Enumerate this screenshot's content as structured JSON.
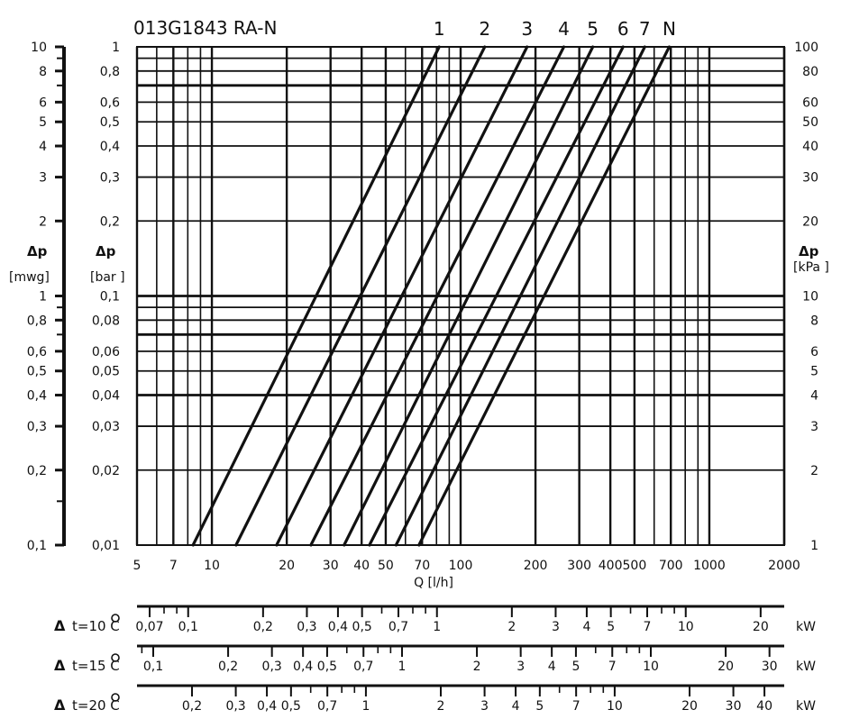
{
  "chart_data": {
    "type": "line",
    "title": "013G1843 RA-N",
    "xlabel": "Q [l/h]",
    "x_scale": "log",
    "y_scale": "log",
    "xlim": [
      5,
      2000
    ],
    "ylim_bar": [
      0.01,
      1
    ],
    "x_tick_values": [
      5,
      7,
      10,
      20,
      30,
      40,
      50,
      70,
      100,
      200,
      300,
      400,
      500,
      700,
      1000,
      2000
    ],
    "x_tick_labels": [
      "5",
      "7",
      "10",
      "20",
      "30",
      "40",
      "50",
      "70",
      "100",
      "200",
      "300",
      "400",
      "500",
      "700",
      "1000",
      "2000"
    ],
    "y_axes": {
      "mwg": {
        "symbol": "Δp",
        "unit": "[mwg]",
        "ticks": [
          {
            "v": 10,
            "label": "10"
          },
          {
            "v": 8,
            "label": "8"
          },
          {
            "v": 6,
            "label": "6"
          },
          {
            "v": 5,
            "label": "5"
          },
          {
            "v": 4,
            "label": "4"
          },
          {
            "v": 3,
            "label": "3"
          },
          {
            "v": 2,
            "label": "2"
          },
          {
            "v": 1,
            "label": "1"
          },
          {
            "v": 0.8,
            "label": "0,8"
          },
          {
            "v": 0.6,
            "label": "0,6"
          },
          {
            "v": 0.5,
            "label": "0,5"
          },
          {
            "v": 0.4,
            "label": "0,4"
          },
          {
            "v": 0.3,
            "label": "0,3"
          },
          {
            "v": 0.2,
            "label": "0,2"
          },
          {
            "v": 0.1,
            "label": "0,1"
          }
        ]
      },
      "bar": {
        "symbol": "Δp",
        "unit": "[bar ]",
        "ticks": [
          {
            "v": 1,
            "label": "1"
          },
          {
            "v": 0.8,
            "label": "0,8"
          },
          {
            "v": 0.6,
            "label": "0,6"
          },
          {
            "v": 0.5,
            "label": "0,5"
          },
          {
            "v": 0.4,
            "label": "0,4"
          },
          {
            "v": 0.3,
            "label": "0,3"
          },
          {
            "v": 0.2,
            "label": "0,2"
          },
          {
            "v": 0.1,
            "label": "0,1"
          },
          {
            "v": 0.08,
            "label": "0,08"
          },
          {
            "v": 0.06,
            "label": "0,06"
          },
          {
            "v": 0.05,
            "label": "0,05"
          },
          {
            "v": 0.04,
            "label": "0,04"
          },
          {
            "v": 0.03,
            "label": "0,03"
          },
          {
            "v": 0.02,
            "label": "0,02"
          },
          {
            "v": 0.01,
            "label": "0,01"
          }
        ]
      },
      "kpa": {
        "symbol": "Δp",
        "unit": "[kPa ]",
        "ticks": [
          {
            "v": 100,
            "label": "100"
          },
          {
            "v": 80,
            "label": "80"
          },
          {
            "v": 60,
            "label": "60"
          },
          {
            "v": 50,
            "label": "50"
          },
          {
            "v": 40,
            "label": "40"
          },
          {
            "v": 30,
            "label": "30"
          },
          {
            "v": 20,
            "label": "20"
          },
          {
            "v": 10,
            "label": "10"
          },
          {
            "v": 8,
            "label": "8"
          },
          {
            "v": 6,
            "label": "6"
          },
          {
            "v": 5,
            "label": "5"
          },
          {
            "v": 4,
            "label": "4"
          },
          {
            "v": 3,
            "label": "3"
          },
          {
            "v": 2,
            "label": "2"
          },
          {
            "v": 1,
            "label": "1"
          }
        ]
      }
    },
    "series": [
      {
        "name": "1",
        "points": [
          [
            8.4,
            0.01
          ],
          [
            82,
            1.0
          ]
        ]
      },
      {
        "name": "2",
        "points": [
          [
            12.5,
            0.01
          ],
          [
            125,
            1.0
          ]
        ]
      },
      {
        "name": "3",
        "points": [
          [
            18.2,
            0.01
          ],
          [
            185,
            1.0
          ]
        ]
      },
      {
        "name": "4",
        "points": [
          [
            25,
            0.01
          ],
          [
            260,
            1.0
          ]
        ]
      },
      {
        "name": "5",
        "points": [
          [
            34,
            0.01
          ],
          [
            340,
            1.0
          ]
        ]
      },
      {
        "name": "6",
        "points": [
          [
            43,
            0.01
          ],
          [
            450,
            1.0
          ]
        ]
      },
      {
        "name": "7",
        "points": [
          [
            55,
            0.01
          ],
          [
            550,
            1.0
          ]
        ]
      },
      {
        "name": "N",
        "points": [
          [
            68,
            0.01
          ],
          [
            690,
            1.0
          ]
        ]
      }
    ],
    "power_scales": [
      {
        "label": "t=10 C",
        "unit": "kW",
        "ticks": [
          {
            "v": 0.07,
            "label": "0,07"
          },
          {
            "v": 0.1,
            "label": "0,1"
          },
          {
            "v": 0.2,
            "label": "0,2"
          },
          {
            "v": 0.3,
            "label": "0,3"
          },
          {
            "v": 0.4,
            "label": "0,4"
          },
          {
            "v": 0.5,
            "label": "0,5"
          },
          {
            "v": 0.7,
            "label": "0,7"
          },
          {
            "v": 1,
            "label": "1"
          },
          {
            "v": 2,
            "label": "2"
          },
          {
            "v": 3,
            "label": "3"
          },
          {
            "v": 4,
            "label": "4"
          },
          {
            "v": 5,
            "label": "5"
          },
          {
            "v": 7,
            "label": "7"
          },
          {
            "v": 10,
            "label": "10"
          },
          {
            "v": 20,
            "label": "20"
          }
        ]
      },
      {
        "label": "t=15 C",
        "unit": "kW",
        "ticks": [
          {
            "v": 0.1,
            "label": "0,1"
          },
          {
            "v": 0.2,
            "label": "0,2"
          },
          {
            "v": 0.3,
            "label": "0,3"
          },
          {
            "v": 0.4,
            "label": "0,4"
          },
          {
            "v": 0.5,
            "label": "0,5"
          },
          {
            "v": 0.7,
            "label": "0,7"
          },
          {
            "v": 1,
            "label": "1"
          },
          {
            "v": 2,
            "label": "2"
          },
          {
            "v": 3,
            "label": "3"
          },
          {
            "v": 4,
            "label": "4"
          },
          {
            "v": 5,
            "label": "5"
          },
          {
            "v": 7,
            "label": "7"
          },
          {
            "v": 10,
            "label": "10"
          },
          {
            "v": 20,
            "label": "20"
          },
          {
            "v": 30,
            "label": "30"
          }
        ]
      },
      {
        "label": "t=20 C",
        "unit": "kW",
        "ticks": [
          {
            "v": 0.2,
            "label": "0,2"
          },
          {
            "v": 0.3,
            "label": "0,3"
          },
          {
            "v": 0.4,
            "label": "0,4"
          },
          {
            "v": 0.5,
            "label": "0,5"
          },
          {
            "v": 0.7,
            "label": "0,7"
          },
          {
            "v": 1,
            "label": "1"
          },
          {
            "v": 2,
            "label": "2"
          },
          {
            "v": 3,
            "label": "3"
          },
          {
            "v": 4,
            "label": "4"
          },
          {
            "v": 5,
            "label": "5"
          },
          {
            "v": 7,
            "label": "7"
          },
          {
            "v": 10,
            "label": "10"
          },
          {
            "v": 20,
            "label": "20"
          },
          {
            "v": 30,
            "label": "30"
          },
          {
            "v": 40,
            "label": "40"
          }
        ]
      }
    ],
    "grid": true,
    "colors": {
      "ink": "#111111",
      "background": "#ffffff"
    }
  }
}
